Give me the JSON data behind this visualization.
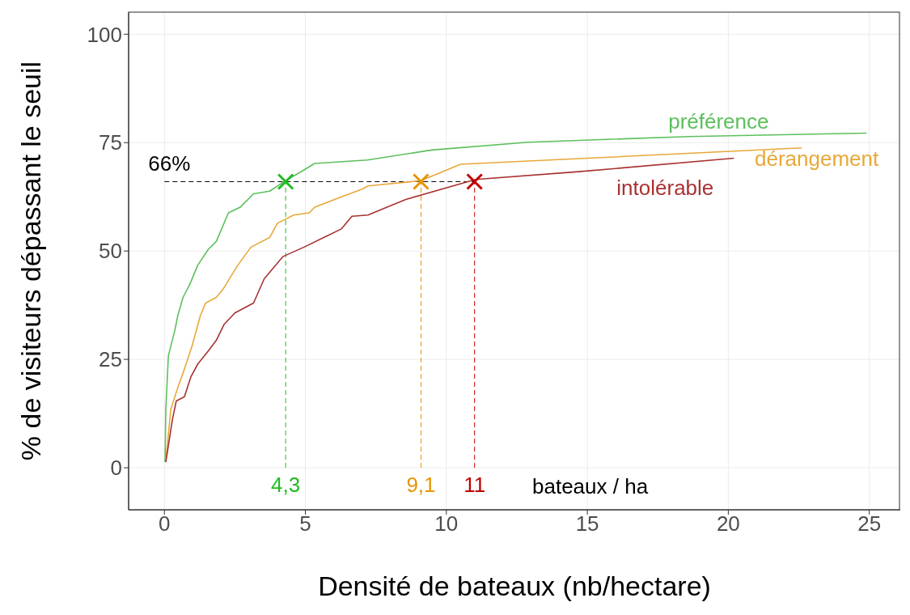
{
  "chart_data": {
    "type": "line",
    "xlabel": "Densité de bateaux (nb/hectare)",
    "ylabel": "% de visiteurs dépassant le seuil",
    "xlim": [
      -1.27,
      26.1
    ],
    "ylim": [
      -9.7,
      105.1
    ],
    "xticks": [
      0,
      5,
      10,
      15,
      20,
      25
    ],
    "yticks": [
      0,
      25,
      50,
      75,
      100
    ],
    "grid": true,
    "marker": "none",
    "line_style": "solid",
    "annotations": [
      "bateaux / ha"
    ],
    "ref_lines": [
      {
        "axis": "y",
        "value": 66,
        "label": "66%",
        "color": "#000000",
        "line_style": "dashed"
      },
      {
        "axis": "x",
        "value": 4.3,
        "label": "4,3",
        "color": "#22bb22",
        "line_style": "dashed"
      },
      {
        "axis": "x",
        "value": 9.1,
        "label": "9,1",
        "color": "#e69500",
        "line_style": "dashed"
      },
      {
        "axis": "x",
        "value": 11,
        "label": "11",
        "color": "#c00000",
        "line_style": "dashed"
      }
    ],
    "series": [
      {
        "name": "préférence",
        "color": "#5cc05c",
        "x": [
          0.02,
          0.05,
          0.14,
          0.38,
          0.47,
          0.66,
          0.9,
          1.18,
          1.56,
          1.84,
          2.27,
          2.69,
          3.16,
          3.73,
          4.29,
          4.77,
          5.33,
          7.2,
          9.48,
          12.9,
          18.6,
          24.9
        ],
        "values": [
          1.3,
          13.6,
          25.8,
          32,
          35,
          39.3,
          42.3,
          46.7,
          50.4,
          52.2,
          58.8,
          60.1,
          63.2,
          63.8,
          66.2,
          68,
          70.2,
          71,
          73.3,
          75.1,
          76.4,
          77.2
        ]
      },
      {
        "name": "dérangement",
        "color": "#e8a838",
        "x": [
          0.05,
          0.23,
          0.47,
          0.71,
          0.99,
          1.27,
          1.46,
          1.84,
          2.08,
          2.6,
          3.07,
          3.73,
          4.01,
          4.58,
          5.14,
          5.33,
          6.28,
          7.03,
          7.22,
          9.08,
          10.5,
          14.7,
          22.6
        ],
        "values": [
          1.8,
          13.6,
          18.4,
          22.8,
          28.3,
          35,
          38,
          39.3,
          41.2,
          46.7,
          50.9,
          53.1,
          56.4,
          58.3,
          58.8,
          60.1,
          62.5,
          64.3,
          65,
          66.2,
          70,
          71.3,
          73.8
        ]
      },
      {
        "name": "intolérable",
        "color": "#a83232",
        "x": [
          0.05,
          0.28,
          0.42,
          0.71,
          0.94,
          1.18,
          1.56,
          1.84,
          2.12,
          2.5,
          3.16,
          3.54,
          4.2,
          4.95,
          5.71,
          6.28,
          6.65,
          7.22,
          8.56,
          11.04,
          14.7,
          20.2
        ],
        "values": [
          1.3,
          11,
          15.4,
          16.4,
          21,
          23.9,
          27,
          29.4,
          33.1,
          35.7,
          38,
          43.6,
          48.7,
          50.9,
          53.3,
          55.1,
          58,
          58.3,
          61.9,
          66.5,
          68.3,
          71.4
        ]
      },
      {
        "type": "scatter",
        "marker": "cross",
        "x": [
          4.3,
          9.1,
          11
        ],
        "values": [
          66,
          66,
          66
        ],
        "colors": [
          "#22bb22",
          "#e69500",
          "#c00000"
        ]
      }
    ]
  }
}
